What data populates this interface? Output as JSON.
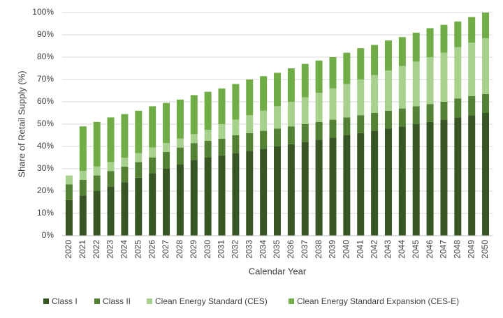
{
  "chart_data": {
    "type": "stacked_bar",
    "y_label": "Share of Retail Supply (%)",
    "x_label": "Calendar Year",
    "categories": [
      "2020",
      "2021",
      "2022",
      "2023",
      "2024",
      "2025",
      "2026",
      "2027",
      "2028",
      "2029",
      "2030",
      "2031",
      "2032",
      "2033",
      "2034",
      "2035",
      "2036",
      "2037",
      "2038",
      "2039",
      "2040",
      "2041",
      "2042",
      "2043",
      "2044",
      "2045",
      "2046",
      "2047",
      "2048",
      "2049",
      "2050"
    ],
    "series": [
      {
        "name": "Class I",
        "color": "#375623",
        "values": [
          16,
          18,
          20,
          22,
          24,
          26,
          28,
          30,
          32,
          34,
          35,
          36,
          37,
          38,
          39,
          40,
          41,
          42,
          43,
          44,
          45,
          46,
          47,
          48,
          49,
          50,
          51,
          52,
          53,
          54,
          55
        ]
      },
      {
        "name": "Class II",
        "color": "#548235",
        "values": [
          7,
          7,
          7,
          7,
          7,
          7,
          7,
          7.5,
          7.5,
          7.5,
          7.5,
          7.5,
          8,
          8,
          8,
          8,
          8,
          8,
          8,
          8,
          8,
          8,
          8,
          8,
          8,
          8,
          8,
          8,
          8.5,
          8.5,
          8.5
        ]
      },
      {
        "name": "Clean Energy Standard (CES)",
        "color": "#a9d18e",
        "values": [
          4,
          4,
          4,
          4,
          4,
          4,
          4.5,
          4,
          4,
          4,
          5,
          6.5,
          7,
          8,
          9,
          10,
          11,
          12,
          13,
          14,
          15,
          16,
          17,
          18,
          19,
          20,
          21,
          22,
          23,
          24,
          25
        ]
      },
      {
        "name": "Clean Energy Standard Expansion (CES-E)",
        "color": "#70ad47",
        "values": [
          0,
          20,
          20,
          20,
          19.5,
          19,
          18.5,
          18,
          17.5,
          17.5,
          17,
          16,
          16,
          16,
          15.5,
          15,
          15,
          15,
          14.5,
          14,
          14,
          14,
          13.5,
          13.5,
          13,
          13,
          13,
          12.5,
          11.5,
          11.5,
          11.5
        ]
      }
    ],
    "ylim": [
      0,
      100
    ],
    "yticks": [
      {
        "value": 0,
        "label": "0%"
      },
      {
        "value": 10,
        "label": "10%"
      },
      {
        "value": 20,
        "label": "20%"
      },
      {
        "value": 30,
        "label": "30%"
      },
      {
        "value": 40,
        "label": "40%"
      },
      {
        "value": 50,
        "label": "50%"
      },
      {
        "value": 60,
        "label": "60%"
      },
      {
        "value": 70,
        "label": "70%"
      },
      {
        "value": 80,
        "label": "80%"
      },
      {
        "value": 90,
        "label": "90%"
      },
      {
        "value": 100,
        "label": "100%"
      }
    ],
    "grid": true,
    "legend": "bottom"
  }
}
